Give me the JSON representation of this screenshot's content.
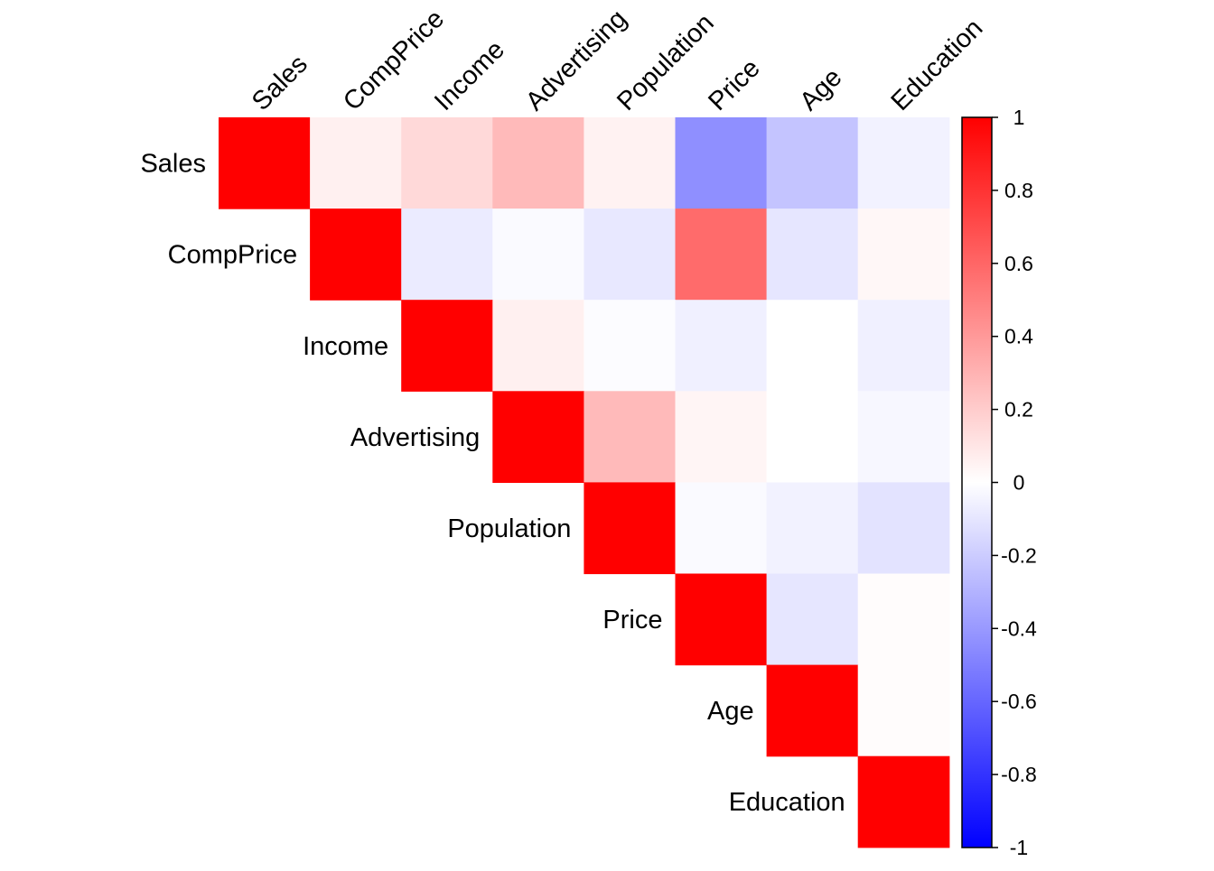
{
  "chart_data": {
    "type": "heatmap",
    "subtype": "correlation-matrix-upper",
    "variables": [
      "Sales",
      "CompPrice",
      "Income",
      "Advertising",
      "Population",
      "Price",
      "Age",
      "Education"
    ],
    "matrix": [
      [
        1.0,
        0.06,
        0.15,
        0.27,
        0.05,
        -0.44,
        -0.23,
        -0.05
      ],
      [
        0.06,
        1.0,
        -0.08,
        -0.02,
        -0.09,
        0.58,
        -0.1,
        0.03
      ],
      [
        0.15,
        -0.08,
        1.0,
        0.06,
        -0.01,
        -0.06,
        -0.0,
        -0.06
      ],
      [
        0.27,
        -0.02,
        0.06,
        1.0,
        0.27,
        0.04,
        -0.0,
        -0.03
      ],
      [
        0.05,
        -0.09,
        -0.01,
        0.27,
        1.0,
        -0.02,
        -0.05,
        -0.11
      ],
      [
        -0.44,
        0.58,
        -0.06,
        0.04,
        -0.02,
        1.0,
        -0.1,
        0.01
      ],
      [
        -0.23,
        -0.1,
        -0.0,
        -0.0,
        -0.05,
        -0.1,
        1.0,
        0.01
      ],
      [
        -0.05,
        0.03,
        -0.06,
        -0.03,
        -0.11,
        0.01,
        0.01,
        1.0
      ]
    ],
    "color_scale": {
      "min": -1,
      "max": 1,
      "low_color": "#0000ff",
      "mid_color": "#ffffff",
      "high_color": "#ff0000",
      "ticks": [
        "1",
        "0.8",
        "0.6",
        "0.4",
        "0.2",
        "0",
        "-0.2",
        "-0.4",
        "-0.6",
        "-0.8",
        "-1"
      ]
    },
    "legend_position": "right"
  }
}
